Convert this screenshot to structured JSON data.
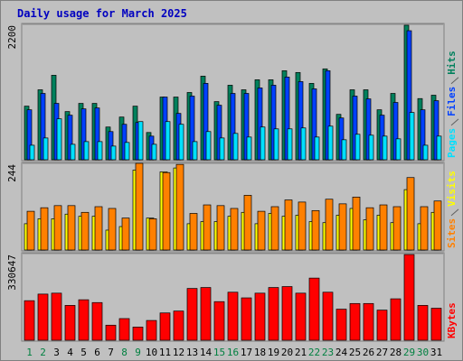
{
  "chart_data": [
    {
      "type": "bar",
      "title": "Daily usage for March 2025",
      "ylim": [
        0,
        2200
      ],
      "yticks": [
        2200
      ],
      "series": [
        {
          "name": "Hits",
          "color": "#00805c",
          "values": [
            871,
            1137,
            1373,
            783,
            916,
            916,
            532,
            694,
            871,
            443,
            1019,
            1019,
            1093,
            1359,
            945,
            1211,
            1137,
            1300,
            1300,
            1447,
            1418,
            1241,
            1477,
            738,
            1137,
            1137,
            812,
            1078,
            2186,
            994,
            1049
          ]
        },
        {
          "name": "Files",
          "color": "#0040ff",
          "values": [
            812,
            1078,
            916,
            724,
            827,
            842,
            458,
            576,
            605,
            384,
            1019,
            753,
            1034,
            1241,
            886,
            1078,
            1078,
            1167,
            1211,
            1344,
            1270,
            1152,
            1447,
            679,
            1034,
            989,
            724,
            931,
            2097,
            812,
            960
          ]
        },
        {
          "name": "Pages",
          "color": "#00e0ff",
          "values": [
            236,
            354,
            665,
            251,
            295,
            295,
            222,
            281,
            620,
            251,
            620,
            576,
            295,
            458,
            354,
            428,
            369,
            532,
            502,
            502,
            517,
            369,
            546,
            325,
            414,
            399,
            384,
            340,
            768,
            236,
            384
          ]
        }
      ]
    },
    {
      "type": "bar",
      "ylim": [
        0,
        244
      ],
      "yticks": [
        244
      ],
      "series": [
        {
          "name": "Visits",
          "color": "#ffff00",
          "values": [
            74,
            88,
            88,
            101,
            95,
            95,
            56,
            66,
            225,
            90,
            220,
            231,
            74,
            80,
            80,
            95,
            106,
            74,
            103,
            95,
            98,
            80,
            77,
            98,
            117,
            85,
            98,
            77,
            170,
            74,
            106
          ]
        },
        {
          "name": "Sites",
          "color": "#ff8000",
          "values": [
            109,
            119,
            125,
            125,
            106,
            122,
            117,
            90,
            244,
            88,
            218,
            241,
            103,
            127,
            125,
            117,
            154,
            109,
            122,
            141,
            135,
            111,
            143,
            130,
            149,
            119,
            127,
            122,
            204,
            122,
            138
          ]
        }
      ]
    },
    {
      "type": "bar",
      "ylim": [
        0,
        330647
      ],
      "yticks": [
        330647
      ],
      "categories": [
        "1",
        "2",
        "3",
        "4",
        "5",
        "6",
        "7",
        "8",
        "9",
        "10",
        "11",
        "12",
        "13",
        "14",
        "15",
        "16",
        "17",
        "18",
        "19",
        "20",
        "21",
        "22",
        "23",
        "24",
        "25",
        "26",
        "27",
        "28",
        "29",
        "30",
        "31"
      ],
      "category_colors": [
        "#008040",
        "#008040",
        "#000000",
        "#000000",
        "#000000",
        "#000000",
        "#000000",
        "#008040",
        "#008040",
        "#000000",
        "#000000",
        "#000000",
        "#000000",
        "#000000",
        "#008040",
        "#008040",
        "#000000",
        "#000000",
        "#000000",
        "#000000",
        "#000000",
        "#008040",
        "#008040",
        "#000000",
        "#000000",
        "#000000",
        "#000000",
        "#000000",
        "#008040",
        "#008040",
        "#000000"
      ],
      "series": [
        {
          "name": "KBytes",
          "color": "#ff0000",
          "values": [
            150948,
            176106,
            179700,
            132978,
            154542,
            143760,
            57504,
            82662,
            50316,
            75474,
            104226,
            111414,
            197670,
            201264,
            147354,
            183294,
            161730,
            179700,
            201264,
            204858,
            179700,
            237204,
            183294,
            118602,
            140166,
            140166,
            115008,
            158136,
            327054,
            132978,
            122196
          ]
        }
      ]
    }
  ]
}
